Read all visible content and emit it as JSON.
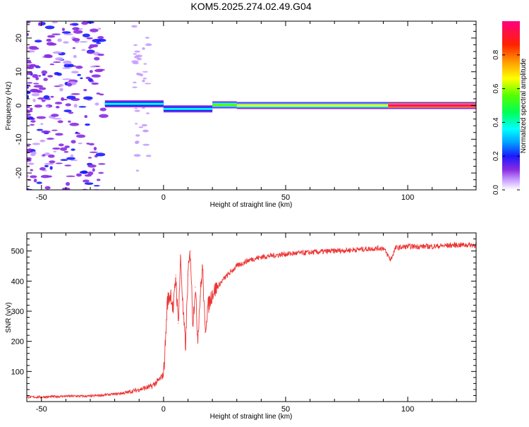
{
  "title": "KOM5.2025.274.02.49.G04",
  "chart_data": [
    {
      "type": "heatmap",
      "title": "KOM5.2025.274.02.49.G04",
      "xlabel": "Height of straight line (km)",
      "ylabel": "Frequency (Hz)",
      "xlim": [
        -56,
        128
      ],
      "ylim": [
        -25,
        25
      ],
      "x_ticks": [
        -50,
        0,
        50,
        100
      ],
      "y_ticks": [
        -20,
        -10,
        0,
        10,
        20
      ],
      "colorbar": {
        "label": "Normalized spectral amplitude",
        "range": [
          0.0,
          1.0
        ],
        "ticks": [
          0.0,
          0.2,
          0.4,
          0.6,
          0.8
        ],
        "tick_labels": [
          "0.0",
          "0.2",
          "0.4",
          "0.6",
          "0.8"
        ]
      },
      "segments": [
        {
          "x": [
            -24,
            0
          ],
          "freq": 0.5,
          "amplitude": 0.3
        },
        {
          "x": [
            0,
            20
          ],
          "freq": -1,
          "amplitude": 0.3
        },
        {
          "x": [
            20,
            30
          ],
          "freq": 0.2,
          "amplitude": 0.55
        },
        {
          "x": [
            30,
            92
          ],
          "freq": 0,
          "amplitude": 0.6
        },
        {
          "x": [
            92,
            128
          ],
          "freq": 0,
          "amplitude": 0.95
        }
      ]
    },
    {
      "type": "line",
      "xlabel": "Height of straight line (km)",
      "ylabel": "SNR (v/v)",
      "xlim": [
        -56,
        128
      ],
      "ylim": [
        0,
        560
      ],
      "x_ticks": [
        -50,
        0,
        50,
        100
      ],
      "y_ticks": [
        100,
        200,
        300,
        400,
        500
      ],
      "color": "#ee3333",
      "series": [
        {
          "name": "SNR",
          "x": [
            -56,
            -50,
            -40,
            -30,
            -20,
            -15,
            -10,
            -5,
            -2,
            0,
            1,
            1.5,
            2,
            3,
            4,
            5,
            6,
            7,
            8,
            9,
            10,
            11,
            12,
            13,
            14,
            15,
            16,
            17,
            18,
            20,
            22,
            25,
            30,
            35,
            40,
            45,
            50,
            60,
            70,
            80,
            90,
            93,
            95,
            100,
            110,
            120,
            128
          ],
          "y": [
            15,
            15,
            18,
            18,
            25,
            30,
            40,
            50,
            70,
            90,
            230,
            330,
            340,
            360,
            300,
            420,
            260,
            480,
            300,
            180,
            420,
            500,
            260,
            380,
            210,
            350,
            450,
            230,
            310,
            360,
            380,
            410,
            450,
            470,
            480,
            485,
            490,
            495,
            500,
            505,
            510,
            470,
            510,
            515,
            515,
            520,
            520
          ]
        }
      ]
    }
  ]
}
